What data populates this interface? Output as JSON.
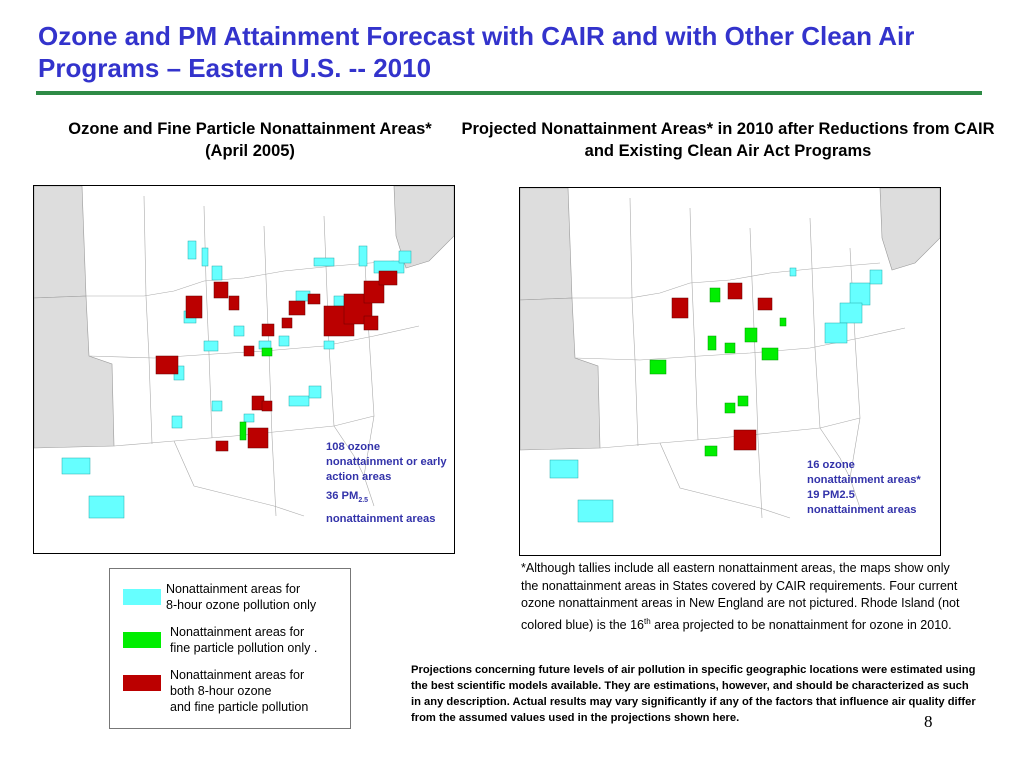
{
  "slide": {
    "title": "Ozone and PM Attainment Forecast with CAIR and with Other Clean Air Programs – Eastern U.S. -- 2010",
    "page_number": "8"
  },
  "left_map": {
    "heading": "Ozone and Fine Particle Nonattainment Areas* (April 2005)",
    "note_line1": "108 ozone nonattainment or early action areas",
    "note_line2_prefix": "36 PM",
    "note_line2_sub": "2.5",
    "note_line3": "nonattainment areas"
  },
  "right_map": {
    "heading": "Projected Nonattainment Areas* in 2010 after Reductions from CAIR and Existing Clean Air Act Programs",
    "note_line1": "16 ozone",
    "note_line2": "nonattainment areas*",
    "note_line3": "19  PM2.5",
    "note_line4": "nonattainment areas"
  },
  "legend": {
    "items": [
      {
        "line1": "Nonattainment areas for",
        "line2": "8-hour ozone pollution only",
        "line3": "",
        "color": "#66ffff"
      },
      {
        "line1": "Nonattainment areas for",
        "line2": "fine particle pollution only .",
        "line3": "",
        "color": "#00ee00"
      },
      {
        "line1": "Nonattainment areas for",
        "line2": "both 8-hour ozone",
        "line3": "and fine particle pollution",
        "color": "#bb0000"
      }
    ]
  },
  "footnote": {
    "text_a": "*Although tallies include all eastern nonattainment areas, the maps show only the nonattainment areas in States covered by CAIR requirements. Four current ozone nonattainment areas in New England are not pictured.  Rhode Island (not colored blue) is the 16",
    "sup": "th",
    "text_b": " area projected to be nonattainment for ozone in 2010."
  },
  "disclaimer": "Projections concerning future levels of air pollution in specific geographic locations were estimated using the best scientific models available.  They are estimations, however, and should be characterized as such in any description.  Actual results may vary significantly if any of the factors that influence air quality differ from the assumed values used in the projections shown here.",
  "colors": {
    "title": "#3333cc",
    "rule": "#2e8b46",
    "ozone_only": "#66ffff",
    "pm_only": "#00ee00",
    "both": "#bb0000",
    "non_cair_states": "#dddddd",
    "note_text": "#3333aa"
  }
}
